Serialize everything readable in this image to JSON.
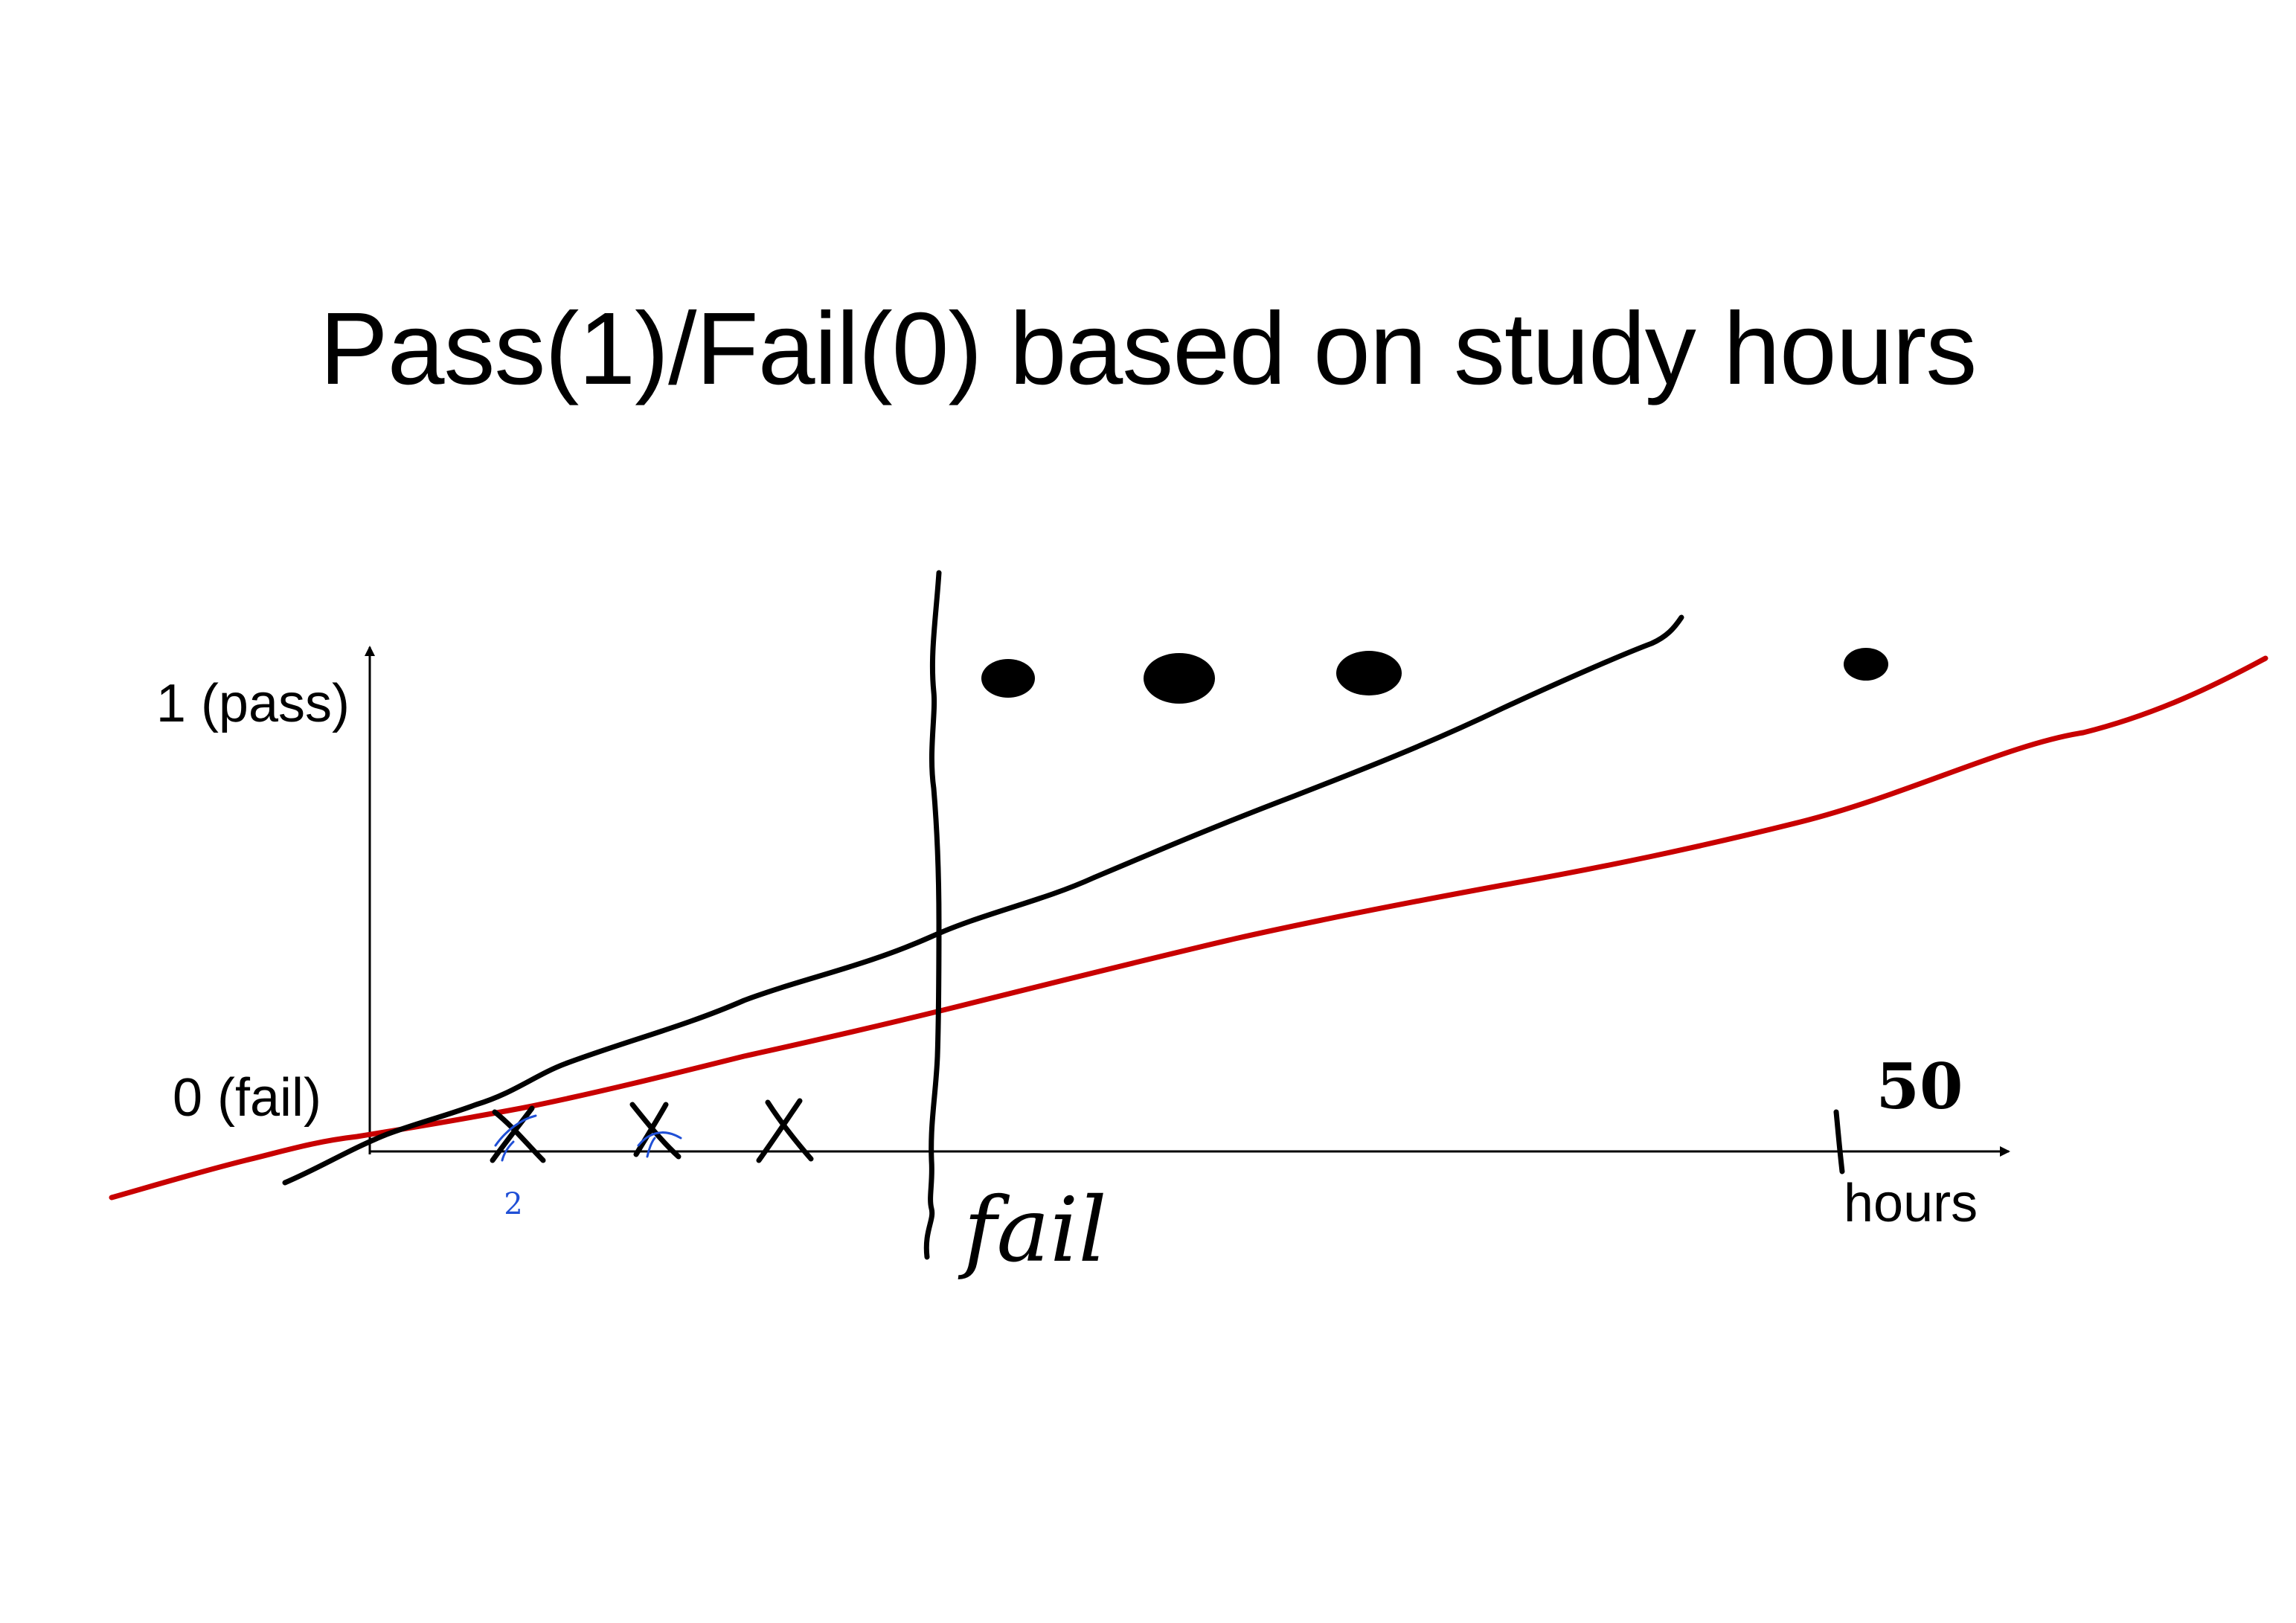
{
  "slide": {
    "title": "Pass(1)/Fail(0) based on study hours"
  },
  "axes": {
    "y_top_label": "1 (pass)",
    "y_bottom_label": "0 (fail)",
    "x_label": "hours"
  },
  "annotations": {
    "x_tick_value": "50",
    "boundary_label": "fail",
    "small_blue_mark": "2"
  },
  "data_markers": {
    "fail_marker_count": 3,
    "pass_marker_count": 4
  },
  "colors": {
    "ink": "#000000",
    "red_line": "#c80000",
    "blue_ink": "#1f4fd6"
  }
}
